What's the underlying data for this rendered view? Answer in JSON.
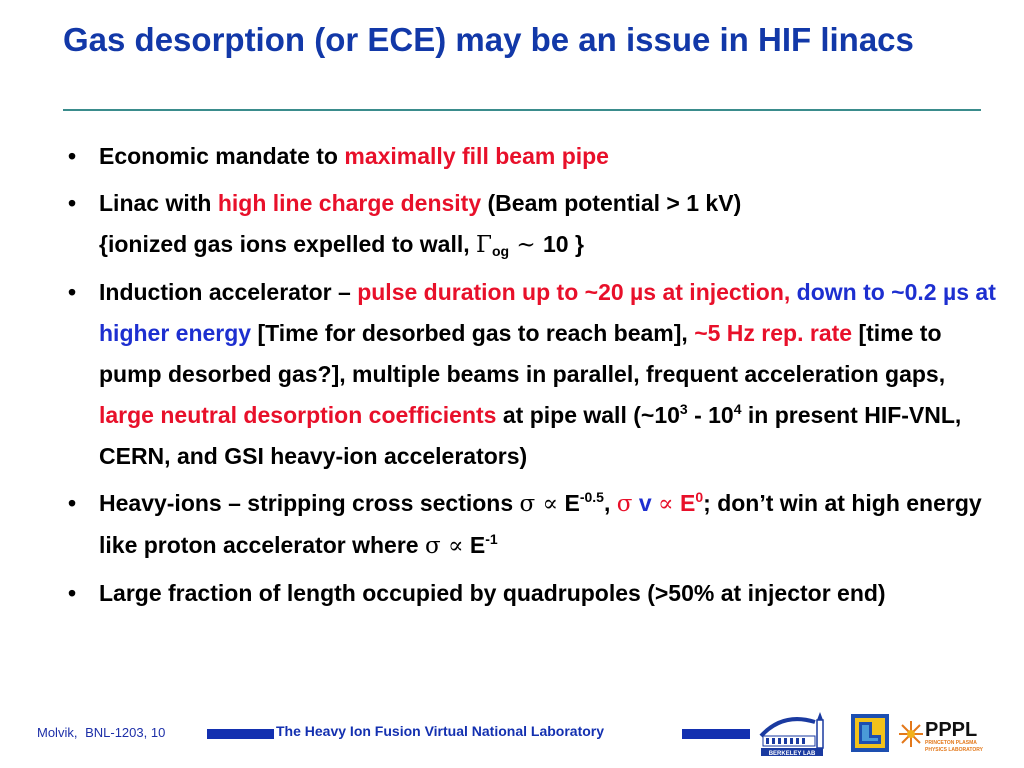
{
  "slide": {
    "title": "Gas desorption (or ECE) may be an issue in HIF linacs",
    "bullet_char": "•",
    "bullets": [
      {
        "b1_t1": "Economic mandate to ",
        "b1_t2": "maximally fill beam pipe"
      },
      {
        "b2_t1": "Linac with ",
        "b2_t2": "high line charge density",
        "b2_t3": " (Beam potential > 1 kV)",
        "b2_t4": "{ionized gas ions expelled to wall, ",
        "b2_gamma": "Γ",
        "b2_sub": "og",
        "b2_tilde": " ~ ",
        "b2_t5": "10 }"
      },
      {
        "b3_t1": "Induction accelerator – ",
        "b3_t2": "pulse duration up to ~20 µs at injection,",
        "b3_t3": "down to ~0.2 µs at higher energy",
        "b3_t4": " [Time for desorbed gas to reach beam], ",
        "b3_t5": "~5 Hz rep. rate",
        "b3_t6": " [time to pump desorbed gas?], multiple beams in parallel, frequent acceleration gaps, ",
        "b3_t7": "large neutral desorption coefficients",
        "b3_t8": " at pipe wall (~10",
        "b3_sup1": "3",
        "b3_t9": " - 10",
        "b3_sup2": "4",
        "b3_t10": " in present HIF-VNL, CERN, and GSI heavy-ion accelerators)"
      },
      {
        "b4_t1": "Heavy-ions – stripping cross sections ",
        "b4_sigma1": "σ ∝",
        "b4_t2": " E",
        "b4_sup1": "-0.5",
        "b4_t3": ", ",
        "b4_sigma2": "σ",
        "b4_t4": " v ",
        "b4_prop": "∝",
        "b4_t5": " E",
        "b4_sup2": "0",
        "b4_t6": "; don’t win at high energy like proton accelerator where ",
        "b4_sigma3": "σ ∝",
        "b4_t7": " E",
        "b4_sup3": "-1"
      },
      {
        "b5_t1": "Large fraction of length occupied by quadrupoles (>50% at injector end)"
      }
    ]
  },
  "footer": {
    "author": "Molvik,",
    "ref": "BNL-1203, 10",
    "center": "The Heavy Ion Fusion Virtual National Laboratory",
    "logos": {
      "berkeley": "BERKELEY LAB",
      "pppl": "PPPL",
      "pppl_sub1": "PRINCETON PLASMA",
      "pppl_sub2": "PHYSICS LABORATORY"
    }
  },
  "colors": {
    "title": "#1238a8",
    "emphasis_red": "#e8102a",
    "emphasis_blue": "#1d2fd0",
    "rule": "#3a8c8c",
    "footer": "#1330b0"
  }
}
